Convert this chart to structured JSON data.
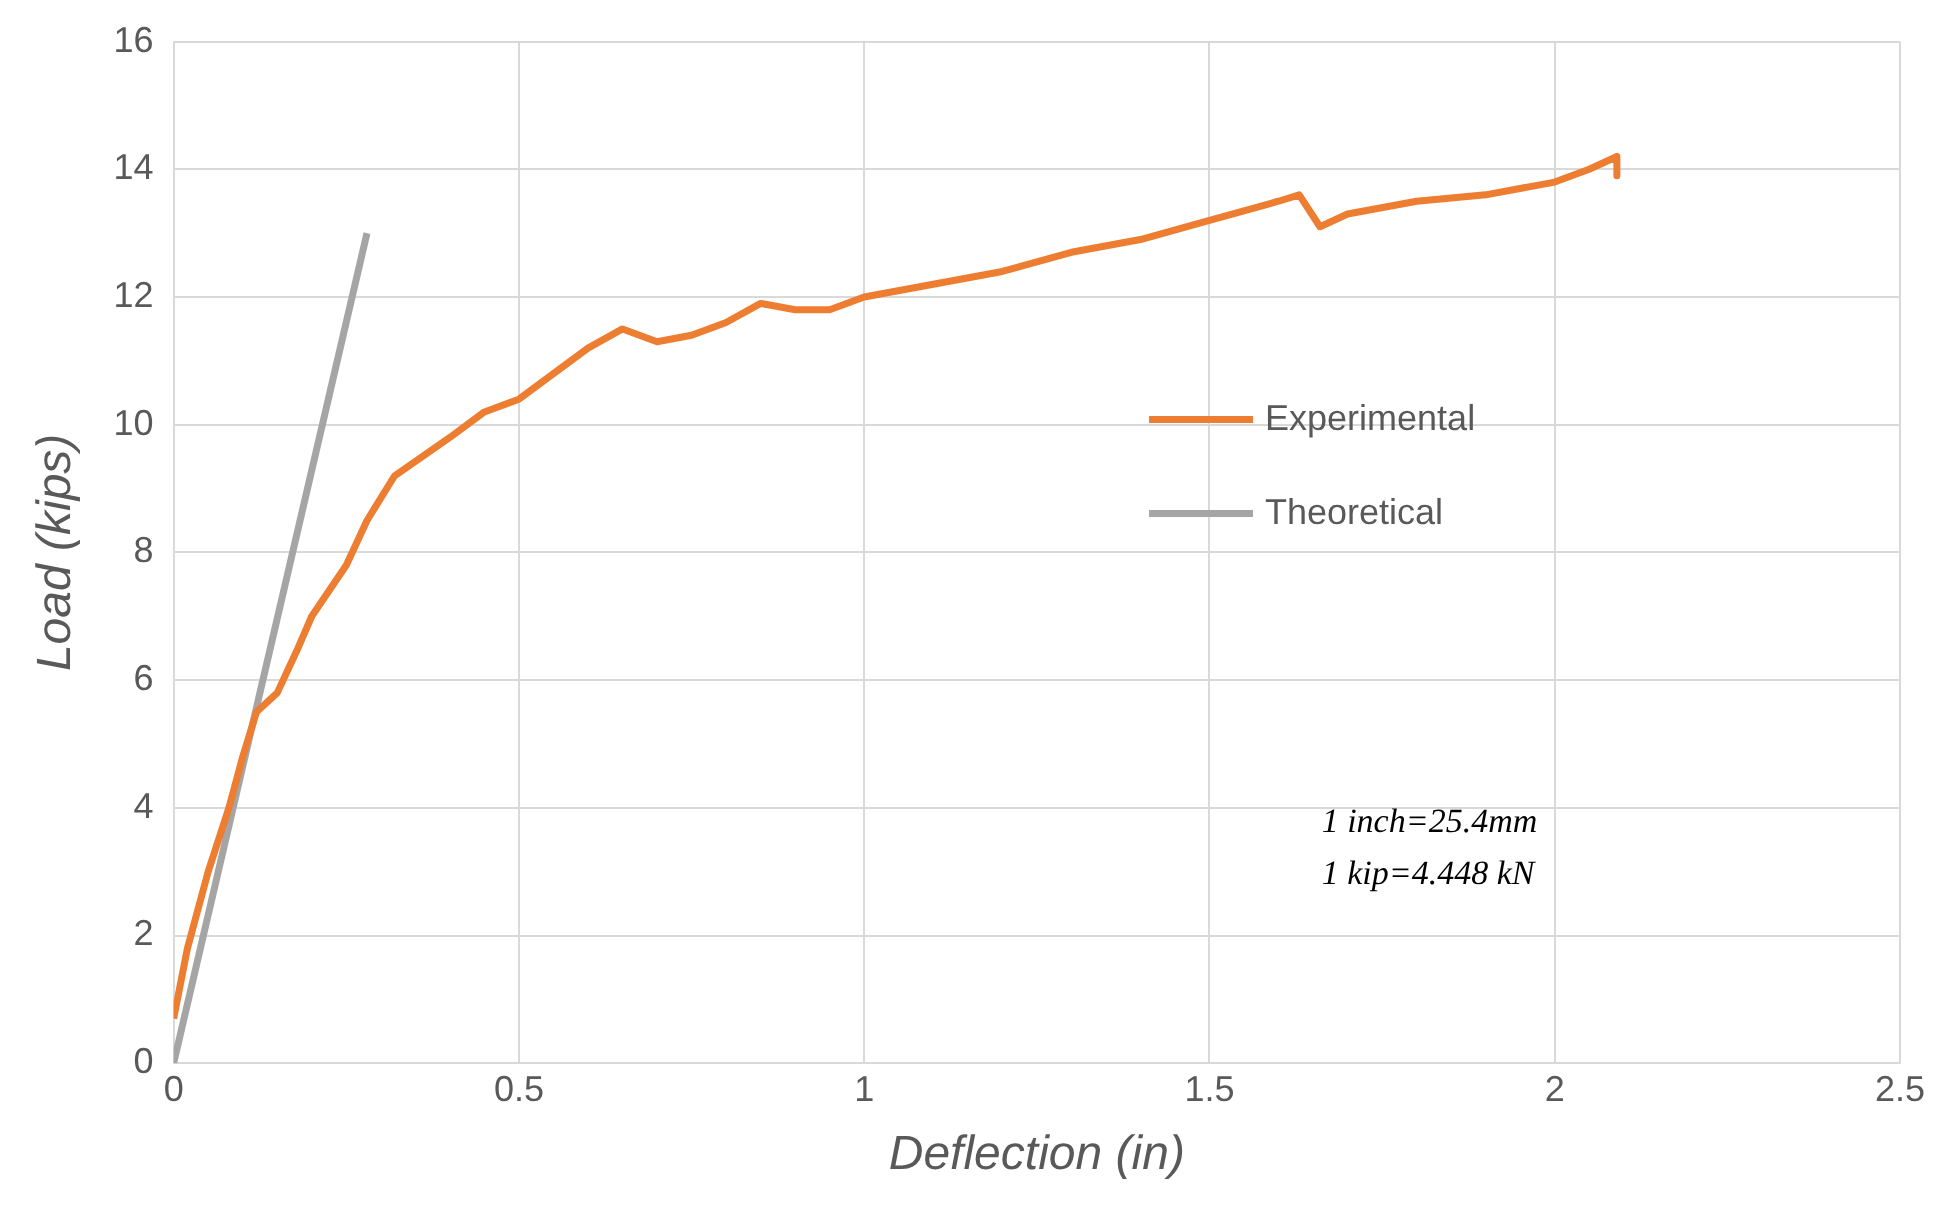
{
  "chart_data": {
    "type": "line",
    "xlabel": "Deflection (in)",
    "ylabel": "Load (kips)",
    "xlim": [
      0,
      2.5
    ],
    "xticks": [
      0,
      0.5,
      1,
      1.5,
      2,
      2.5
    ],
    "ylim": [
      0,
      16
    ],
    "yticks": [
      0,
      2,
      4,
      6,
      8,
      10,
      12,
      14,
      16
    ],
    "grid": true,
    "legend": "right",
    "marker": "none",
    "annotations": [
      "1 inch=25.4mm",
      "1 kip=4.448 kN"
    ],
    "series": [
      {
        "name": "Experimental",
        "color": "#ed7d31",
        "x": [
          0,
          0.02,
          0.05,
          0.08,
          0.1,
          0.12,
          0.15,
          0.18,
          0.2,
          0.25,
          0.28,
          0.32,
          0.36,
          0.4,
          0.45,
          0.5,
          0.55,
          0.6,
          0.65,
          0.7,
          0.75,
          0.8,
          0.85,
          0.9,
          0.95,
          1.0,
          1.1,
          1.2,
          1.3,
          1.4,
          1.5,
          1.6,
          1.63,
          1.66,
          1.7,
          1.8,
          1.9,
          2.0,
          2.05,
          2.09,
          2.09
        ],
        "values": [
          0.7,
          1.8,
          3,
          4,
          4.8,
          5.5,
          5.8,
          6.5,
          7,
          7.8,
          8.5,
          9.2,
          9.5,
          9.8,
          10.2,
          10.4,
          10.8,
          11.2,
          11.5,
          11.3,
          11.4,
          11.6,
          11.9,
          11.8,
          11.8,
          12.0,
          12.2,
          12.4,
          12.7,
          12.9,
          13.2,
          13.5,
          13.6,
          13.1,
          13.3,
          13.5,
          13.6,
          13.8,
          14.0,
          14.2,
          13.9
        ]
      },
      {
        "name": "Theoretical",
        "color": "#a5a5a5",
        "x": [
          0,
          0.28
        ],
        "values": [
          0,
          13
        ]
      }
    ]
  }
}
